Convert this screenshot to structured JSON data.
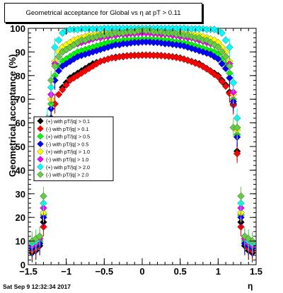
{
  "title": "Geometrical acceptance for Global vs    η at pT > 0.11",
  "footer_timestamp": "Sat Sep  9 12:32:34 2017",
  "chart_data": {
    "type": "scatter",
    "title": "Geometrical acceptance for Global vs    η at pT > 0.11",
    "xlabel": "η",
    "ylabel": "Geometrical acceptance (%)",
    "xlim": [
      -1.5,
      1.5
    ],
    "ylim": [
      0,
      100
    ],
    "xticks": [
      -1.5,
      -1,
      -0.5,
      0,
      0.5,
      1,
      1.5
    ],
    "xtick_labels": [
      "−1.5",
      "−1",
      "−0.5",
      "0",
      "0.5",
      "1",
      "1.5"
    ],
    "yticks": [
      0,
      10,
      20,
      30,
      40,
      50,
      60,
      70,
      80,
      90,
      100
    ],
    "ytick_labels": [
      "0",
      "10",
      "20",
      "30",
      "40",
      "50",
      "60",
      "70",
      "80",
      "90",
      "100"
    ],
    "legend_position": "left-middle",
    "x": [
      -1.45,
      -1.4,
      -1.35,
      -1.3,
      -1.25,
      -1.2,
      -1.15,
      -1.1,
      -1.05,
      -1.0,
      -0.95,
      -0.9,
      -0.85,
      -0.8,
      -0.75,
      -0.7,
      -0.65,
      -0.6,
      -0.55,
      -0.5,
      -0.45,
      -0.4,
      -0.35,
      -0.3,
      -0.25,
      -0.2,
      -0.15,
      -0.1,
      -0.05,
      0.0,
      0.05,
      0.1,
      0.15,
      0.2,
      0.25,
      0.3,
      0.35,
      0.4,
      0.45,
      0.5,
      0.55,
      0.6,
      0.65,
      0.7,
      0.75,
      0.8,
      0.85,
      0.9,
      0.95,
      1.0,
      1.05,
      1.1,
      1.15,
      1.2,
      1.25,
      1.3,
      1.35,
      1.4,
      1.45
    ],
    "series": [
      {
        "name": "(+) with pT/|q| > 0.1",
        "color": "#000000",
        "values": [
          5,
          6,
          8,
          18,
          48,
          62,
          68,
          72,
          75,
          77,
          79,
          80,
          81,
          82,
          83,
          84,
          85,
          85.5,
          86,
          86.5,
          87,
          87.5,
          87.8,
          88,
          88.2,
          88.4,
          88.5,
          88.6,
          88.6,
          88.7,
          88.7,
          88.7,
          88.6,
          88.6,
          88.5,
          88.3,
          88.2,
          88.0,
          87.8,
          87.5,
          87.0,
          86.5,
          86.0,
          85.5,
          85.0,
          84.0,
          83.0,
          82.0,
          81.0,
          80.0,
          78.0,
          76.0,
          73.0,
          68.0,
          48,
          18,
          8,
          6,
          5
        ]
      },
      {
        "name": "(-) with pT/|q| > 0.1",
        "color": "#ff0000",
        "values": [
          6,
          7,
          9,
          16,
          47,
          61,
          68,
          72,
          74,
          76,
          78,
          79,
          80,
          81,
          82,
          83,
          84,
          85,
          86,
          86.5,
          87,
          87.5,
          87.5,
          88,
          88,
          88.3,
          88.4,
          88.5,
          88.5,
          88.6,
          88.6,
          88.6,
          88.5,
          88.5,
          88.4,
          88.3,
          88.1,
          87.9,
          87.6,
          87.3,
          86.9,
          86.4,
          85.9,
          85.2,
          84.6,
          83.8,
          82.8,
          81.8,
          80.5,
          79.5,
          77.5,
          75.5,
          72.5,
          67.5,
          47,
          16,
          9,
          7,
          6
        ]
      },
      {
        "name": "(+) with pT/|q| > 0.5",
        "color": "#00ff00",
        "values": [
          7,
          8,
          10,
          21,
          55,
          68,
          80,
          84,
          86,
          87,
          88,
          89,
          90,
          90.5,
          91,
          91.5,
          92,
          92.5,
          93,
          93.5,
          94,
          94,
          94.5,
          94.5,
          95,
          95,
          95,
          95.2,
          95.2,
          95.3,
          95.3,
          95.3,
          95.2,
          95.2,
          95,
          95,
          94.8,
          94.5,
          94.3,
          94,
          93.8,
          93.5,
          93,
          92.5,
          92,
          91.5,
          91,
          90.5,
          90,
          89,
          87,
          85,
          81,
          70,
          55,
          21,
          10,
          8,
          7
        ]
      },
      {
        "name": "(-) with pT/|q| > 0.5",
        "color": "#0000ff",
        "values": [
          7,
          8,
          9,
          20,
          54,
          66,
          78,
          82,
          84,
          85,
          86,
          87,
          88,
          88.5,
          89,
          89.5,
          90,
          90.5,
          91,
          91.5,
          92,
          92.5,
          93,
          93,
          93.5,
          93.5,
          93.8,
          94,
          94,
          94.2,
          94.2,
          94.2,
          94,
          94,
          93.8,
          93.5,
          93.5,
          93.2,
          93,
          92.8,
          92.5,
          92,
          91.5,
          91,
          90.5,
          90,
          89.5,
          89,
          88,
          87,
          85,
          83,
          79,
          69,
          54,
          20,
          9,
          8,
          7
        ]
      },
      {
        "name": "(+) with pT/|q| > 1.0",
        "color": "#ffff00",
        "values": [
          8,
          9,
          11,
          22,
          57,
          70,
          86,
          90,
          92,
          93,
          94,
          95,
          95.5,
          96,
          96.5,
          97,
          97,
          97.5,
          97.5,
          98,
          98,
          98,
          98.5,
          98.5,
          98.5,
          98.8,
          98.8,
          99,
          99,
          99,
          99,
          99,
          99,
          98.8,
          98.8,
          98.5,
          98.5,
          98.5,
          98,
          98,
          97.8,
          97.5,
          97.5,
          97,
          97,
          96.5,
          96,
          95.5,
          95,
          94,
          92,
          90,
          86,
          72,
          57,
          22,
          11,
          9,
          8
        ]
      },
      {
        "name": "(-) with pT/|q| > 1.0",
        "color": "#ff00ff",
        "values": [
          8,
          9,
          11,
          24,
          58,
          72,
          85,
          88,
          90,
          91,
          92,
          93,
          93.5,
          94,
          94.5,
          95,
          95.5,
          96,
          96,
          96.5,
          96.5,
          97,
          97,
          97.5,
          97.5,
          97.5,
          97.8,
          97.8,
          98,
          98,
          98,
          98,
          97.8,
          97.8,
          97.5,
          97.5,
          97.5,
          97,
          97,
          96.5,
          96.5,
          96,
          96,
          95.5,
          95,
          94.5,
          94,
          93.5,
          93,
          92,
          90,
          88,
          85,
          73,
          58,
          24,
          11,
          9,
          8
        ]
      },
      {
        "name": "(+) with pT/|q| > 2.0",
        "color": "#00ffff",
        "values": [
          9,
          10,
          12,
          26,
          62,
          75,
          92,
          95,
          98,
          99,
          99.5,
          99.5,
          99.5,
          99.8,
          99.8,
          99.8,
          99.8,
          99.8,
          99.8,
          100,
          100,
          100,
          100,
          100,
          100,
          100,
          100,
          100,
          100,
          100,
          100,
          100,
          100,
          100,
          100,
          100,
          100,
          100,
          100,
          100,
          100,
          99.8,
          99.8,
          99.8,
          99.8,
          99.8,
          99.5,
          99.5,
          99.5,
          99,
          98,
          95,
          92,
          77,
          62,
          26,
          12,
          10,
          9
        ]
      },
      {
        "name": "(-) with pT/|q| > 2.0",
        "color": "#66cc44",
        "values": [
          10,
          11,
          12,
          29,
          60,
          78,
          84,
          88,
          90,
          91,
          92,
          93,
          94,
          95,
          95,
          96,
          96,
          96.5,
          97,
          97,
          97.5,
          97.5,
          98,
          98,
          98,
          98.5,
          98.5,
          98.5,
          99,
          99,
          99,
          99,
          98.5,
          98.5,
          98.5,
          98,
          98,
          98,
          97.5,
          97.5,
          97,
          97,
          96.5,
          96,
          96,
          95,
          95,
          94,
          93,
          92,
          90,
          88,
          84,
          58,
          58,
          29,
          12,
          11,
          10
        ]
      }
    ]
  }
}
